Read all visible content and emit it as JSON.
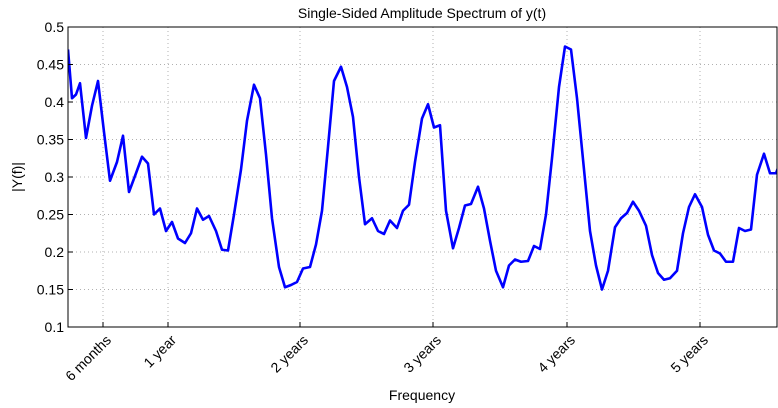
{
  "chart_data": {
    "type": "line",
    "title": "Single-Sided Amplitude Spectrum of y(t)",
    "xlabel": "Frequency",
    "ylabel": "|Y(f)|",
    "x": [
      0,
      4,
      8,
      12,
      18,
      24,
      30,
      36,
      42,
      49,
      55,
      61,
      68,
      74,
      80,
      86,
      92,
      98,
      104,
      110,
      117,
      123,
      129,
      135,
      141,
      148,
      154,
      160,
      166,
      173,
      179,
      186,
      192,
      198,
      204,
      211,
      217,
      223,
      229,
      235,
      242,
      248,
      254,
      260,
      266,
      273,
      279,
      285,
      291,
      297,
      304,
      310,
      316,
      322,
      329,
      335,
      341,
      347,
      354,
      360,
      366,
      372,
      378,
      385,
      391,
      397,
      403,
      410,
      416,
      422,
      428,
      435,
      441,
      447,
      453,
      460,
      466,
      472,
      478,
      484,
      491,
      497,
      503,
      509,
      516,
      522,
      528,
      534,
      540,
      547,
      553,
      559,
      565,
      571,
      578,
      584,
      590,
      596,
      602,
      609,
      615,
      621,
      627,
      634,
      640,
      646,
      652,
      658,
      665,
      671,
      677,
      683,
      689,
      696,
      702,
      708,
      710
    ],
    "series": [
      {
        "name": "|Y(f)|",
        "color": "#0000ff",
        "values": [
          0.47,
          0.405,
          0.41,
          0.425,
          0.352,
          0.395,
          0.428,
          0.36,
          0.295,
          0.32,
          0.355,
          0.28,
          0.305,
          0.327,
          0.318,
          0.25,
          0.258,
          0.228,
          0.24,
          0.218,
          0.212,
          0.225,
          0.258,
          0.243,
          0.248,
          0.228,
          0.203,
          0.202,
          0.25,
          0.31,
          0.375,
          0.423,
          0.405,
          0.33,
          0.245,
          0.18,
          0.153,
          0.156,
          0.16,
          0.178,
          0.18,
          0.21,
          0.255,
          0.34,
          0.428,
          0.447,
          0.42,
          0.38,
          0.3,
          0.237,
          0.245,
          0.228,
          0.224,
          0.242,
          0.232,
          0.255,
          0.263,
          0.32,
          0.378,
          0.397,
          0.366,
          0.369,
          0.255,
          0.205,
          0.232,
          0.262,
          0.264,
          0.287,
          0.258,
          0.215,
          0.175,
          0.153,
          0.182,
          0.19,
          0.187,
          0.188,
          0.208,
          0.204,
          0.25,
          0.325,
          0.42,
          0.474,
          0.47,
          0.405,
          0.31,
          0.228,
          0.182,
          0.15,
          0.175,
          0.233,
          0.245,
          0.252,
          0.267,
          0.255,
          0.235,
          0.196,
          0.172,
          0.163,
          0.165,
          0.175,
          0.225,
          0.26,
          0.277,
          0.26,
          0.223,
          0.202,
          0.198,
          0.187,
          0.187,
          0.232,
          0.228,
          0.23,
          0.303,
          0.331,
          0.305,
          0.305,
          0.312
        ]
      }
    ],
    "xlim": [
      0,
      709
    ],
    "ylim": [
      0.1,
      0.5
    ],
    "xticks": [
      {
        "value": 35,
        "label": "6 months"
      },
      {
        "value": 100,
        "label": "1 year"
      },
      {
        "value": 232,
        "label": "2 years"
      },
      {
        "value": 365,
        "label": "3 years"
      },
      {
        "value": 499,
        "label": "4 years"
      },
      {
        "value": 632,
        "label": "5 years"
      }
    ],
    "yticks": [
      0.1,
      0.15,
      0.2,
      0.25,
      0.3,
      0.35,
      0.4,
      0.45,
      0.5
    ],
    "grid": true
  }
}
